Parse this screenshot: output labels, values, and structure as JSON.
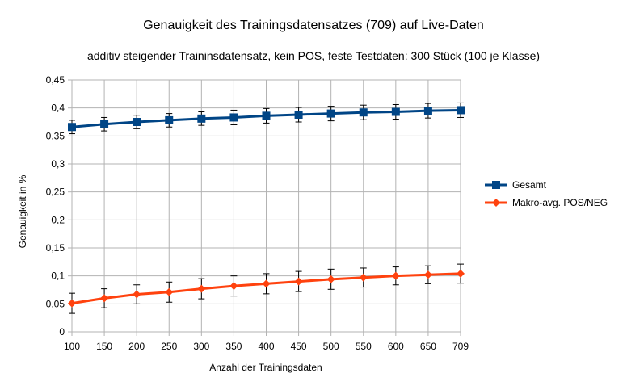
{
  "chart_data": {
    "type": "line",
    "title": "Genauigkeit des Trainingsdatensatzes (709) auf Live-Daten",
    "subtitle": "additiv steigender Traininsdatensatz, kein POS, feste Testdaten: 300 Stück (100 je Klasse)",
    "xlabel": "Anzahl der Trainingsdaten",
    "ylabel": "Genauigkeit in %",
    "categories": [
      "100",
      "150",
      "200",
      "250",
      "300",
      "350",
      "400",
      "450",
      "500",
      "550",
      "600",
      "650",
      "709"
    ],
    "ylim": [
      0,
      0.45
    ],
    "yticks": [
      "0",
      "0,05",
      "0,1",
      "0,15",
      "0,2",
      "0,25",
      "0,3",
      "0,35",
      "0,4",
      "0,45"
    ],
    "grid": true,
    "legend_position": "right",
    "series": [
      {
        "name": "Gesamt",
        "color": "#004586",
        "marker": "square",
        "values": [
          0.366,
          0.371,
          0.375,
          0.378,
          0.381,
          0.383,
          0.386,
          0.388,
          0.39,
          0.392,
          0.393,
          0.395,
          0.396
        ],
        "error": [
          0.012,
          0.012,
          0.012,
          0.012,
          0.012,
          0.013,
          0.013,
          0.013,
          0.013,
          0.013,
          0.013,
          0.013,
          0.013
        ]
      },
      {
        "name": "Makro-avg. POS/NEG",
        "color": "#ff420e",
        "marker": "diamond",
        "values": [
          0.051,
          0.06,
          0.067,
          0.071,
          0.077,
          0.082,
          0.086,
          0.09,
          0.094,
          0.097,
          0.1,
          0.102,
          0.104
        ],
        "error": [
          0.018,
          0.017,
          0.017,
          0.018,
          0.018,
          0.018,
          0.018,
          0.018,
          0.018,
          0.017,
          0.016,
          0.016,
          0.017
        ]
      }
    ]
  }
}
